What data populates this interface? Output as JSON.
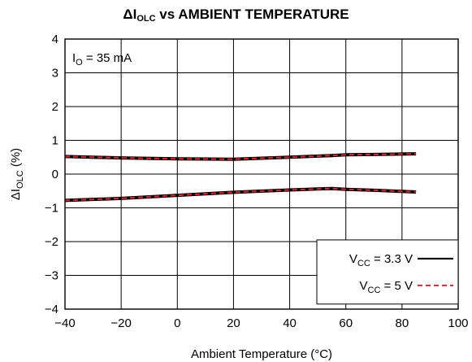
{
  "chart_data": {
    "type": "line",
    "title": {
      "prefix": "ΔI",
      "sub": "OLC",
      "suffix": " vs AMBIENT TEMPERATURE"
    },
    "xlabel": "Ambient Temperature (°C)",
    "ylabel": {
      "prefix": "ΔI",
      "sub": "OLC",
      "suffix": " (%)"
    },
    "xlim": [
      -40,
      100
    ],
    "ylim": [
      -4,
      4
    ],
    "x_ticks": [
      -40,
      -20,
      0,
      20,
      40,
      60,
      80,
      100
    ],
    "x_tick_labels": [
      "−40",
      "−20",
      "0",
      "20",
      "40",
      "60",
      "80",
      "100"
    ],
    "y_ticks": [
      4,
      3,
      2,
      1,
      0,
      -1,
      -2,
      -3,
      -4
    ],
    "y_tick_labels": [
      "4",
      "3",
      "2",
      "1",
      "0",
      "−1",
      "−2",
      "−3",
      "−4"
    ],
    "grid": true,
    "legend_position": "bottom-right",
    "annotation": {
      "prefix": "I",
      "sub": "O",
      "suffix": " = 35 mA"
    },
    "series": [
      {
        "name": {
          "prefix": "V",
          "sub": "CC",
          "suffix": " = 3.3 V"
        },
        "color": "#000000",
        "style": "solid",
        "curves": [
          {
            "x": [
              -40,
              -20,
              0,
              20,
              40,
              55,
              60,
              70,
              85
            ],
            "y": [
              0.52,
              0.48,
              0.45,
              0.44,
              0.5,
              0.55,
              0.57,
              0.58,
              0.6
            ]
          },
          {
            "x": [
              -40,
              -20,
              0,
              20,
              40,
              50,
              55,
              60,
              70,
              85
            ],
            "y": [
              -0.78,
              -0.72,
              -0.63,
              -0.54,
              -0.47,
              -0.44,
              -0.43,
              -0.45,
              -0.48,
              -0.53
            ]
          }
        ]
      },
      {
        "name": {
          "prefix": "V",
          "sub": "CC",
          "suffix": " = 5 V"
        },
        "color": "#e8212b",
        "style": "dashed",
        "curves": [
          {
            "x": [
              -40,
              -20,
              0,
              20,
              40,
              55,
              60,
              70,
              85
            ],
            "y": [
              0.52,
              0.48,
              0.45,
              0.44,
              0.5,
              0.55,
              0.57,
              0.58,
              0.6
            ]
          },
          {
            "x": [
              -40,
              -20,
              0,
              20,
              40,
              50,
              55,
              60,
              70,
              85
            ],
            "y": [
              -0.78,
              -0.72,
              -0.63,
              -0.54,
              -0.47,
              -0.44,
              -0.43,
              -0.45,
              -0.48,
              -0.53
            ]
          }
        ]
      }
    ]
  }
}
